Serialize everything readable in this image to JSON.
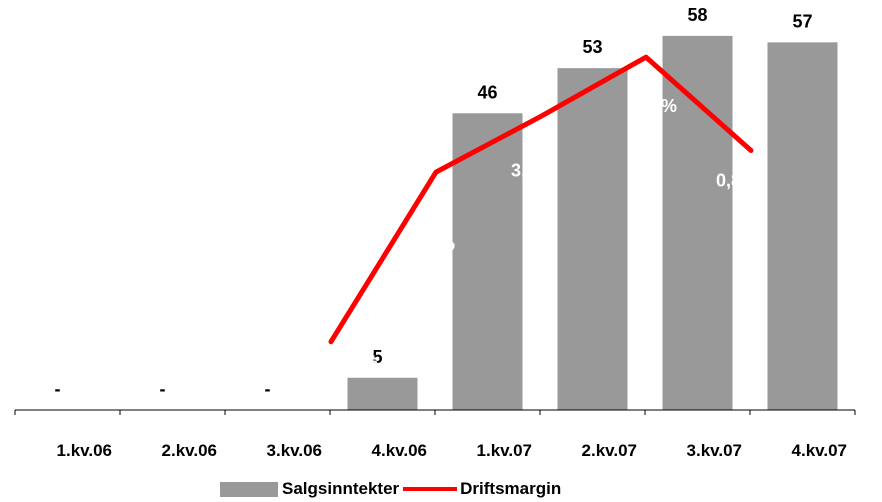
{
  "chart_data": {
    "type": "bar",
    "categories": [
      "1.kv.06",
      "2.kv.06",
      "3.kv.06",
      "4.kv.06",
      "1.kv.07",
      "2.kv.07",
      "3.kv.07",
      "4.kv.07"
    ],
    "series": [
      {
        "name": "Salgsinntekter",
        "type": "bar",
        "values": [
          0,
          0,
          0,
          5,
          46,
          53,
          58,
          57
        ],
        "labels": [
          "-",
          "-",
          "-",
          "5",
          "46",
          "53",
          "58",
          "57"
        ],
        "color": "#999999"
      },
      {
        "name": "Driftsmargin",
        "type": "line",
        "values": [
          null,
          null,
          null,
          -16.0,
          -1.1,
          3.8,
          9.0,
          0.8
        ],
        "labels": [
          "",
          "",
          "",
          "-16,0 %",
          "-1,1 %",
          "3,8 %",
          "9,0 %",
          "0,8 %"
        ],
        "color": "#ff0000"
      }
    ],
    "ylim": [
      0,
      60
    ],
    "y2lim": [
      -22,
      12
    ],
    "grid": false,
    "legend_position": "bottom"
  }
}
